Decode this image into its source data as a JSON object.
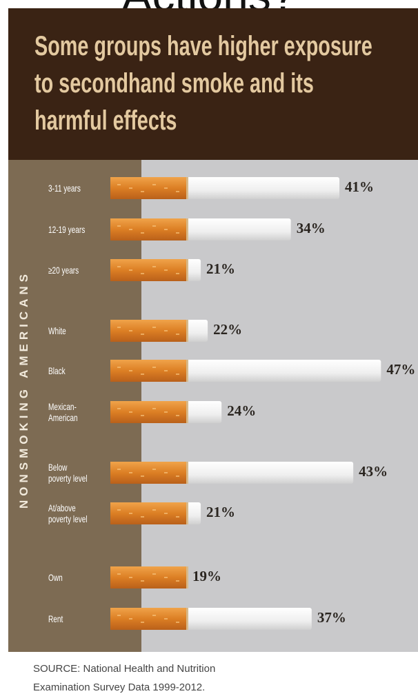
{
  "page_heading": "Actions?",
  "chart_data": {
    "type": "bar",
    "orientation": "horizontal",
    "title": "Some groups have higher exposure\nto secondhand smoke and its\nharmful effects",
    "side_label": "NONSMOKING AMERICANS",
    "categories": [
      "3-11 years",
      "12-19 years",
      "≥20 years",
      "White",
      "Black",
      "Mexican-\nAmerican",
      "Below\npoverty level",
      "At/above\npoverty level",
      "Own",
      "Rent"
    ],
    "values": [
      41,
      34,
      21,
      22,
      47,
      24,
      43,
      21,
      19,
      37
    ],
    "value_labels": [
      "41%",
      "34%",
      "21%",
      "22%",
      "47%",
      "24%",
      "43%",
      "21%",
      "19%",
      "37%"
    ],
    "source": "SOURCE: National Health and Nutrition\nExamination Survey Data 1999-2012."
  }
}
